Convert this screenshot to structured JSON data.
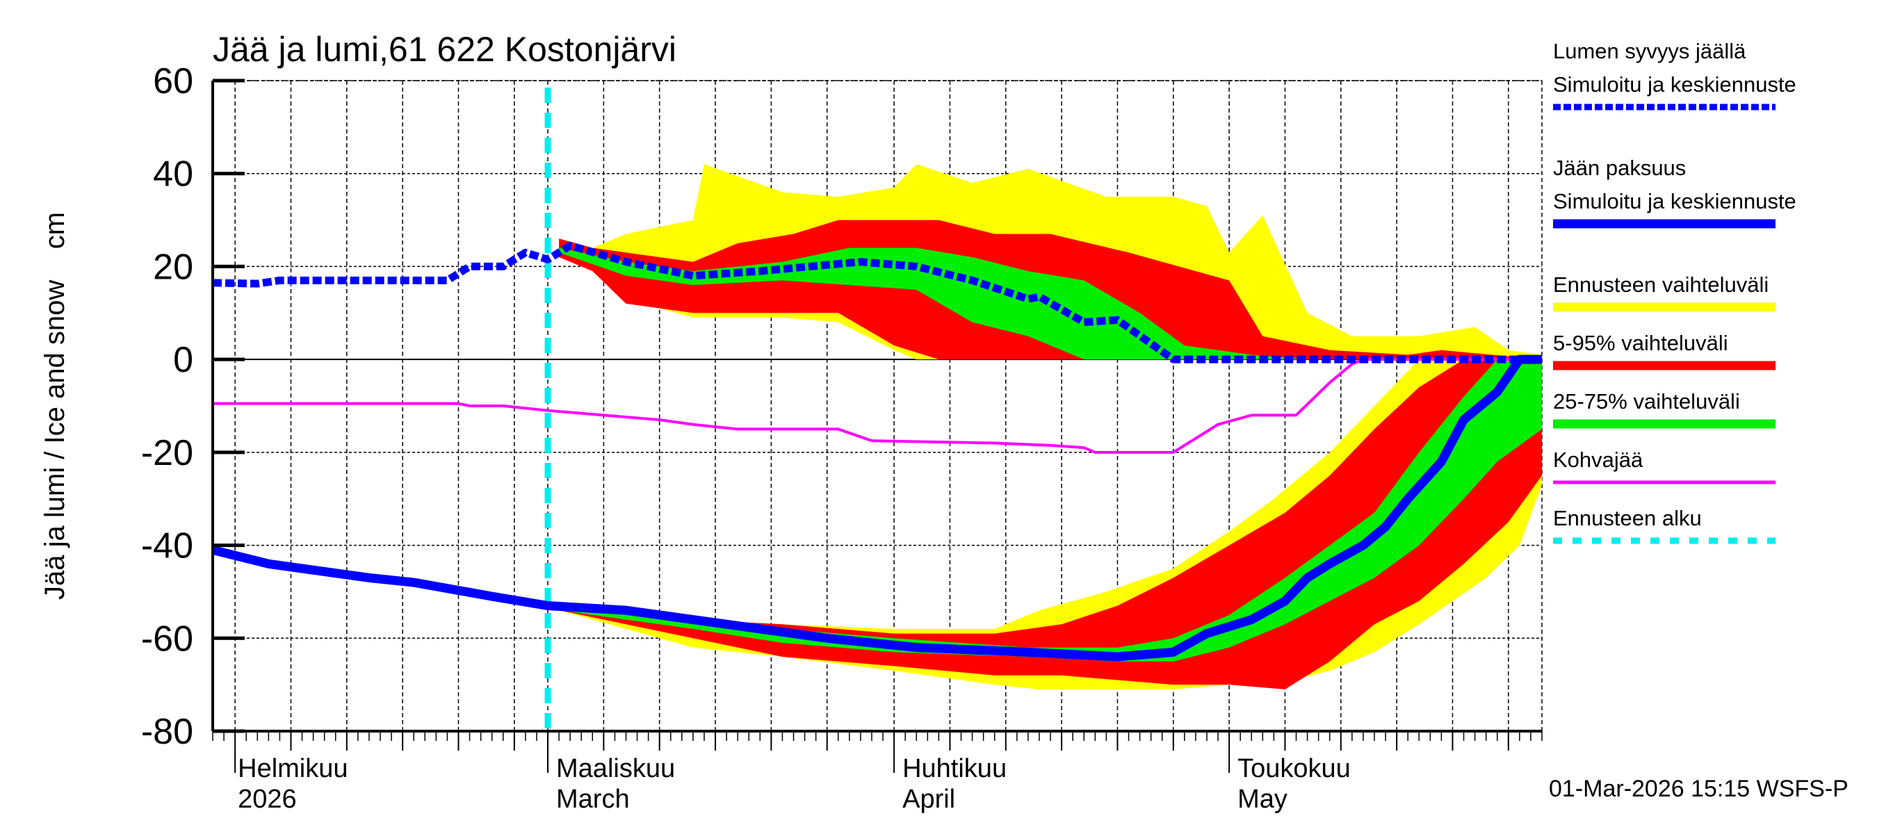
{
  "chart_data": {
    "type": "area",
    "title": "Jää ja lumi,61 622 Kostonjärvi",
    "ylabel": "Jää ja lumi / Ice and snow    cm",
    "ylim": [
      -80,
      60
    ],
    "yticks": [
      60,
      40,
      20,
      0,
      -20,
      -40,
      -60,
      -80
    ],
    "xlim": [
      "2026-01-30",
      "2026-05-29"
    ],
    "grid": true,
    "legend_position": "right",
    "forecast_start": "2026-03-01",
    "months": [
      {
        "date": "2026-02-01",
        "fi": "Helmikuu",
        "en": "2026"
      },
      {
        "date": "2026-03-01",
        "fi": "Maaliskuu",
        "en": "March"
      },
      {
        "date": "2026-04-01",
        "fi": "Huhtikuu",
        "en": "April"
      },
      {
        "date": "2026-05-01",
        "fi": "Toukokuu",
        "en": "May"
      }
    ],
    "legend": [
      {
        "key": "snow",
        "label1": "Lumen syvyys jäällä",
        "label2": "Simuloitu ja keskiennuste",
        "color": "#0000ff",
        "style": "dashed-thick"
      },
      {
        "key": "ice",
        "label1": "Jään paksuus",
        "label2": "Simuloitu ja keskiennuste",
        "color": "#0000ff",
        "style": "solid-thick"
      },
      {
        "key": "range",
        "label1": "Ennusteen vaihteluväli",
        "color": "#ffff00",
        "style": "band"
      },
      {
        "key": "p5_95",
        "label1": "5-95% vaihteluväli",
        "color": "#ff0000",
        "style": "band"
      },
      {
        "key": "p25_75",
        "label1": "25-75% vaihteluväli",
        "color": "#00ee00",
        "style": "band"
      },
      {
        "key": "slush",
        "label1": "Kohvajää",
        "color": "#ff00ff",
        "style": "solid"
      },
      {
        "key": "fstart",
        "label1": "Ennusteen alku",
        "color": "#00eeee",
        "style": "dashed"
      }
    ],
    "bands": {
      "snow_range": [
        [
          "2026-03-02",
          24,
          26
        ],
        [
          "2026-03-05",
          20,
          24
        ],
        [
          "2026-03-08",
          13,
          27
        ],
        [
          "2026-03-14",
          9,
          30
        ],
        [
          "2026-03-15",
          9,
          42
        ],
        [
          "2026-03-22",
          9,
          36
        ],
        [
          "2026-03-27",
          8,
          35
        ],
        [
          "2026-04-01",
          2,
          37
        ],
        [
          "2026-04-03",
          0,
          42
        ],
        [
          "2026-04-08",
          0,
          38
        ],
        [
          "2026-04-13",
          0,
          41
        ],
        [
          "2026-04-20",
          0,
          35
        ],
        [
          "2026-04-26",
          0,
          35
        ],
        [
          "2026-04-29",
          0,
          33
        ],
        [
          "2026-05-01",
          0,
          23
        ],
        [
          "2026-05-04",
          0,
          31
        ],
        [
          "2026-05-08",
          0,
          10
        ],
        [
          "2026-05-12",
          0,
          5
        ],
        [
          "2026-05-18",
          0,
          5
        ],
        [
          "2026-05-23",
          0,
          7
        ],
        [
          "2026-05-26",
          0,
          2
        ],
        [
          "2026-05-29",
          0,
          1
        ]
      ],
      "snow_p5_95": [
        [
          "2026-03-02",
          22,
          26
        ],
        [
          "2026-03-05",
          19,
          24
        ],
        [
          "2026-03-08",
          12,
          23
        ],
        [
          "2026-03-14",
          10,
          21
        ],
        [
          "2026-03-18",
          10,
          25
        ],
        [
          "2026-03-23",
          10,
          27
        ],
        [
          "2026-03-27",
          10,
          30
        ],
        [
          "2026-04-01",
          3,
          30
        ],
        [
          "2026-04-05",
          0,
          30
        ],
        [
          "2026-04-10",
          0,
          27
        ],
        [
          "2026-04-15",
          0,
          27
        ],
        [
          "2026-04-22",
          0,
          23
        ],
        [
          "2026-04-28",
          0,
          19
        ],
        [
          "2026-05-01",
          0,
          17
        ],
        [
          "2026-05-04",
          0,
          5
        ],
        [
          "2026-05-10",
          0,
          2
        ],
        [
          "2026-05-17",
          0,
          1
        ],
        [
          "2026-05-20",
          0,
          2
        ],
        [
          "2026-05-29",
          0,
          0
        ]
      ],
      "snow_p25_75": [
        [
          "2026-03-02",
          23,
          24
        ],
        [
          "2026-03-08",
          18,
          21
        ],
        [
          "2026-03-14",
          16,
          19
        ],
        [
          "2026-03-22",
          17,
          21
        ],
        [
          "2026-03-28",
          16,
          24
        ],
        [
          "2026-04-03",
          15,
          24
        ],
        [
          "2026-04-08",
          8,
          22
        ],
        [
          "2026-04-13",
          5,
          19
        ],
        [
          "2026-04-18",
          0,
          17
        ],
        [
          "2026-04-23",
          0,
          10
        ],
        [
          "2026-04-27",
          0,
          3
        ],
        [
          "2026-05-03",
          0,
          1
        ],
        [
          "2026-05-08",
          0,
          0
        ]
      ],
      "ice_range": [
        [
          "2026-03-02",
          -54,
          -53
        ],
        [
          "2026-03-08",
          -58,
          -54
        ],
        [
          "2026-03-14",
          -62,
          -56
        ],
        [
          "2026-03-22",
          -64,
          -57
        ],
        [
          "2026-04-01",
          -67,
          -58
        ],
        [
          "2026-04-10",
          -70,
          -58
        ],
        [
          "2026-04-14",
          -71,
          -54
        ],
        [
          "2026-04-20",
          -71,
          -50
        ],
        [
          "2026-04-26",
          -71,
          -45
        ],
        [
          "2026-05-01",
          -70,
          -37
        ],
        [
          "2026-05-05",
          -70,
          -30
        ],
        [
          "2026-05-10",
          -67,
          -20
        ],
        [
          "2026-05-14",
          -63,
          -10
        ],
        [
          "2026-05-18",
          -57,
          0
        ],
        [
          "2026-05-24",
          -47,
          0
        ],
        [
          "2026-05-27",
          -40,
          0
        ],
        [
          "2026-05-29",
          -27,
          0
        ]
      ],
      "ice_p5_95": [
        [
          "2026-03-02",
          -54,
          -53
        ],
        [
          "2026-03-08",
          -57,
          -54
        ],
        [
          "2026-03-14",
          -60,
          -56
        ],
        [
          "2026-03-22",
          -64,
          -57
        ],
        [
          "2026-04-01",
          -66,
          -59
        ],
        [
          "2026-04-10",
          -68,
          -59
        ],
        [
          "2026-04-16",
          -68,
          -57
        ],
        [
          "2026-04-21",
          -69,
          -53
        ],
        [
          "2026-04-26",
          -70,
          -47
        ],
        [
          "2026-05-01",
          -70,
          -40
        ],
        [
          "2026-05-06",
          -71,
          -33
        ],
        [
          "2026-05-10",
          -65,
          -25
        ],
        [
          "2026-05-14",
          -57,
          -15
        ],
        [
          "2026-05-18",
          -52,
          -6
        ],
        [
          "2026-05-22",
          -44,
          0
        ],
        [
          "2026-05-26",
          -35,
          0
        ],
        [
          "2026-05-29",
          -25,
          0
        ]
      ],
      "ice_p25_75": [
        [
          "2026-03-02",
          -54,
          -53
        ],
        [
          "2026-03-14",
          -58,
          -56
        ],
        [
          "2026-03-22",
          -61,
          -58
        ],
        [
          "2026-04-01",
          -63,
          -60
        ],
        [
          "2026-04-13",
          -64,
          -62
        ],
        [
          "2026-04-21",
          -65,
          -62
        ],
        [
          "2026-04-26",
          -65,
          -60
        ],
        [
          "2026-05-01",
          -62,
          -55
        ],
        [
          "2026-05-06",
          -57,
          -47
        ],
        [
          "2026-05-10",
          -52,
          -40
        ],
        [
          "2026-05-14",
          -47,
          -33
        ],
        [
          "2026-05-18",
          -40,
          -20
        ],
        [
          "2026-05-22",
          -30,
          -8
        ],
        [
          "2026-05-25",
          -22,
          0
        ],
        [
          "2026-05-29",
          -15,
          0
        ]
      ]
    },
    "series": [
      {
        "key": "slush",
        "points": [
          [
            "2026-01-30",
            -9.5
          ],
          [
            "2026-02-21",
            -9.5
          ],
          [
            "2026-02-22",
            -10
          ],
          [
            "2026-02-25",
            -10
          ],
          [
            "2026-03-01",
            -11
          ],
          [
            "2026-03-06",
            -12
          ],
          [
            "2026-03-11",
            -13
          ],
          [
            "2026-03-14",
            -14
          ],
          [
            "2026-03-18",
            -15
          ],
          [
            "2026-03-27",
            -15
          ],
          [
            "2026-03-30",
            -17.5
          ],
          [
            "2026-04-10",
            -18
          ],
          [
            "2026-04-15",
            -18.5
          ],
          [
            "2026-04-18",
            -19
          ],
          [
            "2026-04-19",
            -20
          ],
          [
            "2026-04-26",
            -20
          ],
          [
            "2026-04-30",
            -14
          ],
          [
            "2026-05-03",
            -12
          ],
          [
            "2026-05-07",
            -12
          ],
          [
            "2026-05-10",
            -5
          ],
          [
            "2026-05-12",
            -1
          ],
          [
            "2026-05-13",
            0
          ],
          [
            "2026-05-29",
            0
          ]
        ]
      },
      {
        "key": "snow",
        "points": [
          [
            "2026-01-30",
            16.5
          ],
          [
            "2026-02-03",
            16.3
          ],
          [
            "2026-02-05",
            17
          ],
          [
            "2026-02-15",
            17
          ],
          [
            "2026-02-20",
            17
          ],
          [
            "2026-02-22",
            20
          ],
          [
            "2026-02-25",
            20
          ],
          [
            "2026-02-27",
            23
          ],
          [
            "2026-03-01",
            21.5
          ],
          [
            "2026-03-03",
            24.5
          ],
          [
            "2026-03-08",
            21
          ],
          [
            "2026-03-14",
            18
          ],
          [
            "2026-03-20",
            19
          ],
          [
            "2026-03-29",
            21
          ],
          [
            "2026-04-03",
            20
          ],
          [
            "2026-04-08",
            17
          ],
          [
            "2026-04-13",
            13
          ],
          [
            "2026-04-14",
            13.5
          ],
          [
            "2026-04-18",
            8
          ],
          [
            "2026-04-21",
            8.5
          ],
          [
            "2026-04-26",
            0
          ],
          [
            "2026-05-29",
            0
          ]
        ]
      },
      {
        "key": "ice",
        "points": [
          [
            "2026-01-30",
            -41
          ],
          [
            "2026-02-04",
            -44
          ],
          [
            "2026-02-13",
            -47
          ],
          [
            "2026-02-17",
            -48
          ],
          [
            "2026-02-24",
            -51
          ],
          [
            "2026-03-01",
            -53
          ],
          [
            "2026-03-08",
            -54
          ],
          [
            "2026-03-14",
            -56
          ],
          [
            "2026-03-26",
            -60
          ],
          [
            "2026-04-03",
            -62
          ],
          [
            "2026-04-13",
            -63
          ],
          [
            "2026-04-21",
            -64
          ],
          [
            "2026-04-26",
            -63
          ],
          [
            "2026-04-29",
            -59
          ],
          [
            "2026-05-03",
            -56
          ],
          [
            "2026-05-06",
            -52
          ],
          [
            "2026-05-08",
            -47
          ],
          [
            "2026-05-10",
            -44
          ],
          [
            "2026-05-13",
            -40
          ],
          [
            "2026-05-15",
            -36
          ],
          [
            "2026-05-17",
            -30
          ],
          [
            "2026-05-20",
            -22
          ],
          [
            "2026-05-22",
            -13
          ],
          [
            "2026-05-25",
            -7
          ],
          [
            "2026-05-27",
            0
          ],
          [
            "2026-05-29",
            0
          ]
        ]
      }
    ]
  },
  "footer": {
    "timestamp": "01-Mar-2026 15:15 WSFS-P"
  }
}
